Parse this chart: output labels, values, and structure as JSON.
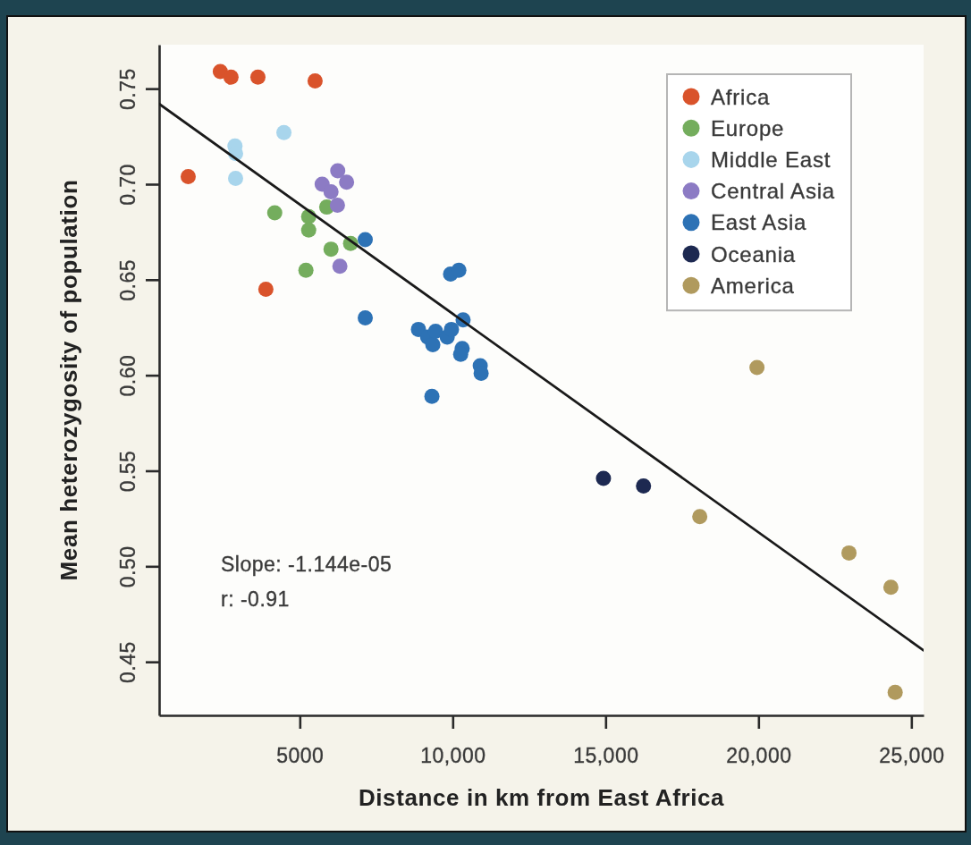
{
  "chart_data": {
    "type": "scatter",
    "xlabel": "Distance in km from East Africa",
    "ylabel": "Mean heterozygosity of population",
    "xlim": [
      400,
      25400
    ],
    "ylim": [
      0.422,
      0.773
    ],
    "xticks": [
      5000,
      {
        "value": 10000,
        "label": "10,000"
      },
      {
        "value": 15000,
        "label": "15,000"
      },
      {
        "value": 20000,
        "label": "20,000"
      },
      {
        "value": 25000,
        "label": "25,000"
      }
    ],
    "yticks": [
      0.45,
      {
        "value": 0.5,
        "label": "0.50"
      },
      0.55,
      {
        "value": 0.6,
        "label": "0.60"
      },
      0.65,
      {
        "value": 0.7,
        "label": "0.70"
      },
      0.75
    ],
    "grid": false,
    "legend": "top right",
    "marker": "circle",
    "annotations": [
      "Slope: -1.144e-05",
      "r: -0.91"
    ],
    "series": [
      {
        "name": "Africa",
        "color": "#d9532b",
        "x": [
          2400,
          2750,
          3630,
          5500,
          1350,
          3890
        ],
        "values": [
          0.759,
          0.756,
          0.756,
          0.754,
          0.704,
          0.645
        ]
      },
      {
        "name": "Europe",
        "color": "#74ad5d",
        "x": [
          4180,
          5290,
          5290,
          5880,
          6020,
          6660,
          5200
        ],
        "values": [
          0.685,
          0.683,
          0.676,
          0.688,
          0.666,
          0.669,
          0.655
        ]
      },
      {
        "name": "Middle East",
        "color": "#a8d5ec",
        "x": [
          2880,
          2900,
          4480,
          2900
        ],
        "values": [
          0.72,
          0.716,
          0.727,
          0.703
        ]
      },
      {
        "name": "Central Asia",
        "color": "#8c7bc4",
        "x": [
          5730,
          6240,
          6530,
          6020,
          6230,
          6310
        ],
        "values": [
          0.7,
          0.707,
          0.701,
          0.696,
          0.689,
          0.657
        ]
      },
      {
        "name": "East Asia",
        "color": "#2d72b5",
        "x": [
          7140,
          7140,
          9930,
          10200,
          10340,
          8880,
          9180,
          9350,
          9440,
          9820,
          9960,
          10310,
          10260,
          10900,
          10930,
          9320
        ],
        "values": [
          0.671,
          0.63,
          0.653,
          0.655,
          0.629,
          0.624,
          0.62,
          0.616,
          0.623,
          0.62,
          0.624,
          0.614,
          0.611,
          0.605,
          0.601,
          0.589
        ]
      },
      {
        "name": "Oceania",
        "color": "#1d2951",
        "x": [
          14930,
          16240
        ],
        "values": [
          0.546,
          0.542
        ]
      },
      {
        "name": "America",
        "color": "#b09a5e",
        "x": [
          19950,
          18080,
          22960,
          24330,
          24470
        ],
        "values": [
          0.604,
          0.526,
          0.507,
          0.489,
          0.434
        ]
      },
      {
        "type": "line",
        "marker": "none",
        "color": "#1a1a1a",
        "x": [
          400,
          25400
        ],
        "values": [
          0.742,
          0.456
        ]
      }
    ]
  }
}
